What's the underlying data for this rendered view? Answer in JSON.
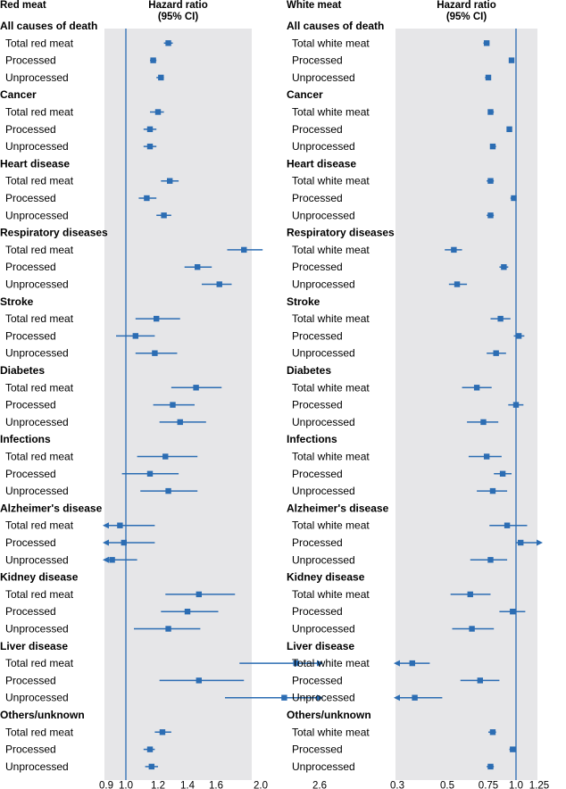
{
  "colors": {
    "panel": "#e6e6e8",
    "accent": "#2c6db3",
    "text": "#1a1a1a"
  },
  "chart_data": [
    {
      "type": "forest",
      "title": "Red meat",
      "header": "Hazard ratio\n(95% CI)",
      "xlim": [
        0.9,
        2.6
      ],
      "xticks": [
        0.9,
        1.0,
        1.2,
        1.4,
        1.6,
        2.0,
        2.6
      ],
      "xtick_labels": [
        "0.9",
        "1.0",
        "1.2",
        "1.4",
        "1.6",
        "2.0",
        "2.6"
      ],
      "reference_line": 1.0,
      "groups": [
        {
          "category": "All causes of death",
          "rows": [
            {
              "label": "Total red meat",
              "hr": 1.27,
              "lo": 1.24,
              "hi": 1.3
            },
            {
              "label": "Processed",
              "hr": 1.17,
              "lo": 1.15,
              "hi": 1.19
            },
            {
              "label": "Unprocessed",
              "hr": 1.22,
              "lo": 1.19,
              "hi": 1.24
            }
          ]
        },
        {
          "category": "Cancer",
          "rows": [
            {
              "label": "Total red meat",
              "hr": 1.2,
              "lo": 1.15,
              "hi": 1.24
            },
            {
              "label": "Processed",
              "hr": 1.15,
              "lo": 1.11,
              "hi": 1.19
            },
            {
              "label": "Unprocessed",
              "hr": 1.15,
              "lo": 1.11,
              "hi": 1.19
            }
          ]
        },
        {
          "category": "Heart disease",
          "rows": [
            {
              "label": "Total red meat",
              "hr": 1.28,
              "lo": 1.22,
              "hi": 1.34
            },
            {
              "label": "Processed",
              "hr": 1.13,
              "lo": 1.08,
              "hi": 1.19
            },
            {
              "label": "Unprocessed",
              "hr": 1.24,
              "lo": 1.19,
              "hi": 1.29
            }
          ]
        },
        {
          "category": "Respiratory diseases",
          "rows": [
            {
              "label": "Total red meat",
              "hr": 1.85,
              "lo": 1.7,
              "hi": 2.02
            },
            {
              "label": "Processed",
              "hr": 1.47,
              "lo": 1.38,
              "hi": 1.57
            },
            {
              "label": "Unprocessed",
              "hr": 1.63,
              "lo": 1.5,
              "hi": 1.74
            }
          ]
        },
        {
          "category": "Stroke",
          "rows": [
            {
              "label": "Total red meat",
              "hr": 1.19,
              "lo": 1.06,
              "hi": 1.35
            },
            {
              "label": "Processed",
              "hr": 1.06,
              "lo": 0.95,
              "hi": 1.18
            },
            {
              "label": "Unprocessed",
              "hr": 1.18,
              "lo": 1.06,
              "hi": 1.33
            }
          ]
        },
        {
          "category": "Diabetes",
          "rows": [
            {
              "label": "Total red meat",
              "hr": 1.46,
              "lo": 1.29,
              "hi": 1.65
            },
            {
              "label": "Processed",
              "hr": 1.3,
              "lo": 1.17,
              "hi": 1.45
            },
            {
              "label": "Unprocessed",
              "hr": 1.35,
              "lo": 1.21,
              "hi": 1.53
            }
          ]
        },
        {
          "category": "Infections",
          "rows": [
            {
              "label": "Total red meat",
              "hr": 1.25,
              "lo": 1.07,
              "hi": 1.47
            },
            {
              "label": "Processed",
              "hr": 1.15,
              "lo": 0.98,
              "hi": 1.34
            },
            {
              "label": "Unprocessed",
              "hr": 1.27,
              "lo": 1.09,
              "hi": 1.47
            }
          ]
        },
        {
          "category": "Alzheimer's disease",
          "rows": [
            {
              "label": "Total red meat",
              "hr": 0.97,
              "lo": 0.86,
              "hi": 1.18,
              "lo_arrow": true
            },
            {
              "label": "Processed",
              "hr": 0.99,
              "lo": 0.86,
              "hi": 1.18,
              "lo_arrow": true
            },
            {
              "label": "Unprocessed",
              "hr": 0.93,
              "lo": 0.86,
              "hi": 1.07,
              "lo_arrow": true
            }
          ]
        },
        {
          "category": "Kidney disease",
          "rows": [
            {
              "label": "Total red meat",
              "hr": 1.48,
              "lo": 1.25,
              "hi": 1.77
            },
            {
              "label": "Processed",
              "hr": 1.4,
              "lo": 1.22,
              "hi": 1.62
            },
            {
              "label": "Unprocessed",
              "hr": 1.27,
              "lo": 1.05,
              "hi": 1.49
            }
          ]
        },
        {
          "category": "Liver disease",
          "rows": [
            {
              "label": "Total red meat",
              "hr": 2.36,
              "lo": 1.81,
              "hi": 2.6,
              "hi_arrow": true
            },
            {
              "label": "Processed",
              "hr": 1.48,
              "lo": 1.21,
              "hi": 1.85
            },
            {
              "label": "Unprocessed",
              "hr": 2.24,
              "lo": 1.68,
              "hi": 2.6,
              "hi_arrow": true
            }
          ]
        },
        {
          "category": "Others/unknown",
          "rows": [
            {
              "label": "Total red meat",
              "hr": 1.23,
              "lo": 1.18,
              "hi": 1.29
            },
            {
              "label": "Processed",
              "hr": 1.15,
              "lo": 1.11,
              "hi": 1.18
            },
            {
              "label": "Unprocessed",
              "hr": 1.16,
              "lo": 1.12,
              "hi": 1.2
            }
          ]
        }
      ]
    },
    {
      "type": "forest",
      "title": "White meat",
      "header": "Hazard ratio\n(95% CI)",
      "xlim": [
        0.3,
        1.25
      ],
      "xticks": [
        0.3,
        0.5,
        0.75,
        1.0,
        1.25
      ],
      "xtick_labels": [
        "0.3",
        "0.5",
        "0.75",
        "1.0",
        "1.25"
      ],
      "reference_line": 1.0,
      "groups": [
        {
          "category": "All causes of death",
          "rows": [
            {
              "label": "Total white meat",
              "hr": 0.74,
              "lo": 0.72,
              "hi": 0.76
            },
            {
              "label": "Processed",
              "hr": 0.96,
              "lo": 0.95,
              "hi": 0.97
            },
            {
              "label": "Unprocessed",
              "hr": 0.75,
              "lo": 0.73,
              "hi": 0.77
            }
          ]
        },
        {
          "category": "Cancer",
          "rows": [
            {
              "label": "Total white meat",
              "hr": 0.77,
              "lo": 0.75,
              "hi": 0.8
            },
            {
              "label": "Processed",
              "hr": 0.94,
              "lo": 0.92,
              "hi": 0.96
            },
            {
              "label": "Unprocessed",
              "hr": 0.79,
              "lo": 0.77,
              "hi": 0.82
            }
          ]
        },
        {
          "category": "Heart disease",
          "rows": [
            {
              "label": "Total white meat",
              "hr": 0.77,
              "lo": 0.74,
              "hi": 0.8
            },
            {
              "label": "Processed",
              "hr": 0.98,
              "lo": 0.95,
              "hi": 1.0
            },
            {
              "label": "Unprocessed",
              "hr": 0.77,
              "lo": 0.74,
              "hi": 0.8
            }
          ]
        },
        {
          "category": "Respiratory diseases",
          "rows": [
            {
              "label": "Total white meat",
              "hr": 0.54,
              "lo": 0.49,
              "hi": 0.59
            },
            {
              "label": "Processed",
              "hr": 0.89,
              "lo": 0.85,
              "hi": 0.93
            },
            {
              "label": "Unprocessed",
              "hr": 0.56,
              "lo": 0.51,
              "hi": 0.62
            }
          ]
        },
        {
          "category": "Stroke",
          "rows": [
            {
              "label": "Total white meat",
              "hr": 0.86,
              "lo": 0.77,
              "hi": 0.95
            },
            {
              "label": "Processed",
              "hr": 1.03,
              "lo": 0.98,
              "hi": 1.09
            },
            {
              "label": "Unprocessed",
              "hr": 0.82,
              "lo": 0.74,
              "hi": 0.91
            }
          ]
        },
        {
          "category": "Diabetes",
          "rows": [
            {
              "label": "Total white meat",
              "hr": 0.68,
              "lo": 0.59,
              "hi": 0.78
            },
            {
              "label": "Processed",
              "hr": 1.0,
              "lo": 0.93,
              "hi": 1.08
            },
            {
              "label": "Unprocessed",
              "hr": 0.72,
              "lo": 0.62,
              "hi": 0.84
            }
          ]
        },
        {
          "category": "Infections",
          "rows": [
            {
              "label": "Total white meat",
              "hr": 0.74,
              "lo": 0.63,
              "hi": 0.87
            },
            {
              "label": "Processed",
              "hr": 0.88,
              "lo": 0.8,
              "hi": 0.96
            },
            {
              "label": "Unprocessed",
              "hr": 0.79,
              "lo": 0.68,
              "hi": 0.92
            }
          ]
        },
        {
          "category": "Alzheimer's disease",
          "rows": [
            {
              "label": "Total white meat",
              "hr": 0.92,
              "lo": 0.76,
              "hi": 1.12
            },
            {
              "label": "Processed",
              "hr": 1.05,
              "lo": 1.0,
              "hi": 1.25,
              "hi_arrow": true
            },
            {
              "label": "Unprocessed",
              "hr": 0.77,
              "lo": 0.64,
              "hi": 0.92
            }
          ]
        },
        {
          "category": "Kidney disease",
          "rows": [
            {
              "label": "Total white meat",
              "hr": 0.64,
              "lo": 0.52,
              "hi": 0.77
            },
            {
              "label": "Processed",
              "hr": 0.97,
              "lo": 0.85,
              "hi": 1.1
            },
            {
              "label": "Unprocessed",
              "hr": 0.65,
              "lo": 0.53,
              "hi": 0.8
            }
          ]
        },
        {
          "category": "Liver disease",
          "rows": [
            {
              "label": "Total white meat",
              "hr": 0.36,
              "lo": 0.3,
              "hi": 0.43,
              "lo_arrow": true
            },
            {
              "label": "Processed",
              "hr": 0.7,
              "lo": 0.58,
              "hi": 0.85
            },
            {
              "label": "Unprocessed",
              "hr": 0.37,
              "lo": 0.3,
              "hi": 0.48,
              "lo_arrow": true
            }
          ]
        },
        {
          "category": "Others/unknown",
          "rows": [
            {
              "label": "Total white meat",
              "hr": 0.79,
              "lo": 0.75,
              "hi": 0.82
            },
            {
              "label": "Processed",
              "hr": 0.97,
              "lo": 0.94,
              "hi": 1.0
            },
            {
              "label": "Unprocessed",
              "hr": 0.77,
              "lo": 0.74,
              "hi": 0.8
            }
          ]
        }
      ]
    }
  ]
}
